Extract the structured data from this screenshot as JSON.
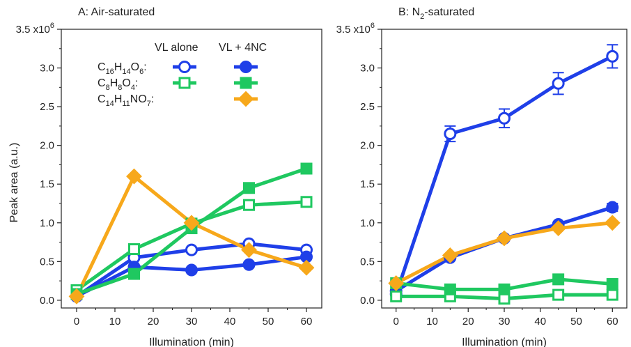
{
  "colors": {
    "blue": "#1f3fe8",
    "green": "#1fc860",
    "orange": "#f7a81b",
    "axis": "#222222"
  },
  "shared": {
    "ylabel": "Peak area (a.u.)",
    "xlabel": "Illumination (min)",
    "y_multiplier_label": "3.5 x10",
    "y_multiplier_exp": "6"
  },
  "legend": {
    "col1": "VL alone",
    "col2": "VL + 4NC",
    "rows": [
      {
        "base": "C",
        "parts": [
          [
            "C",
            ""
          ],
          [
            "16",
            "sub"
          ],
          [
            "H",
            ""
          ],
          [
            "14",
            "sub"
          ],
          [
            "O",
            ""
          ],
          [
            "6",
            "sub"
          ],
          [
            ":",
            ""
          ]
        ],
        "color": "blue",
        "alone_marker": "circle",
        "with_marker": "circle"
      },
      {
        "base": "C",
        "parts": [
          [
            "C",
            ""
          ],
          [
            "8",
            "sub"
          ],
          [
            "H",
            ""
          ],
          [
            "8",
            "sub"
          ],
          [
            "O",
            ""
          ],
          [
            "4",
            "sub"
          ],
          [
            ":",
            ""
          ]
        ],
        "color": "green",
        "alone_marker": "square",
        "with_marker": "square"
      },
      {
        "base": "C",
        "parts": [
          [
            "C",
            ""
          ],
          [
            "14",
            "sub"
          ],
          [
            "H",
            ""
          ],
          [
            "11",
            "sub"
          ],
          [
            "NO",
            ""
          ],
          [
            "7",
            "sub"
          ],
          [
            ":",
            ""
          ]
        ],
        "color": "orange",
        "alone_marker": null,
        "with_marker": "diamond"
      }
    ]
  },
  "chart_data": [
    {
      "type": "line",
      "title": "A: Air-saturated",
      "xlabel": "Illumination (min)",
      "ylabel": "Peak area (a.u.)",
      "xlim": [
        -4,
        64
      ],
      "ylim": [
        -0.1,
        3.5
      ],
      "xticks": [
        0,
        10,
        20,
        30,
        40,
        50,
        60
      ],
      "yticks": [
        0.0,
        0.5,
        1.0,
        1.5,
        2.0,
        2.5,
        3.0
      ],
      "ytick_labels": [
        "0.0",
        "0.5",
        "1.0",
        "1.5",
        "2.0",
        "2.5",
        "3.0"
      ],
      "top_label": "3.5 x10",
      "top_label_exp": "6",
      "series": [
        {
          "formula": "C16H14O6",
          "condition": "VL alone",
          "color": "blue",
          "marker": "circle",
          "filled": false,
          "x": [
            0,
            15,
            30,
            45,
            60
          ],
          "y": [
            0.05,
            0.55,
            0.65,
            0.73,
            0.65
          ]
        },
        {
          "formula": "C16H14O6",
          "condition": "VL + 4NC",
          "color": "blue",
          "marker": "circle",
          "filled": true,
          "x": [
            0,
            15,
            30,
            45,
            60
          ],
          "y": [
            0.05,
            0.43,
            0.39,
            0.46,
            0.56
          ]
        },
        {
          "formula": "C8H8O4",
          "condition": "VL alone",
          "color": "green",
          "marker": "square",
          "filled": false,
          "x": [
            0,
            15,
            30,
            45,
            60
          ],
          "y": [
            0.13,
            0.66,
            0.99,
            1.23,
            1.27
          ]
        },
        {
          "formula": "C8H8O4",
          "condition": "VL + 4NC",
          "color": "green",
          "marker": "square",
          "filled": true,
          "x": [
            0,
            15,
            30,
            45,
            60
          ],
          "y": [
            0.08,
            0.34,
            0.93,
            1.45,
            1.7
          ]
        },
        {
          "formula": "C14H11NO7",
          "condition": "VL + 4NC",
          "color": "orange",
          "marker": "diamond",
          "filled": true,
          "x": [
            0,
            15,
            30,
            45,
            60
          ],
          "y": [
            0.05,
            1.6,
            1.0,
            0.65,
            0.42
          ]
        }
      ]
    },
    {
      "type": "line",
      "title": "B: N2-saturated",
      "xlabel": "Illumination (min)",
      "xlim": [
        -4,
        64
      ],
      "ylim": [
        -0.1,
        3.5
      ],
      "xticks": [
        0,
        10,
        20,
        30,
        40,
        50,
        60
      ],
      "yticks": [
        0.0,
        0.5,
        1.0,
        1.5,
        2.0,
        2.5,
        3.0
      ],
      "ytick_labels": [
        "0.0",
        "0.5",
        "1.0",
        "1.5",
        "2.0",
        "2.5",
        "3.0"
      ],
      "top_label": "3.5 x10",
      "top_label_exp": "6",
      "series": [
        {
          "formula": "C16H14O6",
          "condition": "VL alone",
          "color": "blue",
          "marker": "circle",
          "filled": false,
          "x": [
            0,
            15,
            30,
            45,
            60
          ],
          "y": [
            0.08,
            2.15,
            2.35,
            2.8,
            3.15
          ],
          "err": [
            0.02,
            0.1,
            0.12,
            0.14,
            0.15
          ]
        },
        {
          "formula": "C16H14O6",
          "condition": "VL + 4NC",
          "color": "blue",
          "marker": "circle",
          "filled": true,
          "x": [
            0,
            15,
            30,
            45,
            60
          ],
          "y": [
            0.12,
            0.55,
            0.8,
            0.98,
            1.2
          ],
          "err": [
            0.02,
            0.03,
            0.03,
            0.03,
            0.05
          ]
        },
        {
          "formula": "C8H8O4",
          "condition": "VL alone",
          "color": "green",
          "marker": "square",
          "filled": false,
          "x": [
            0,
            15,
            30,
            45,
            60
          ],
          "y": [
            0.05,
            0.05,
            0.02,
            0.07,
            0.07
          ]
        },
        {
          "formula": "C8H8O4",
          "condition": "VL + 4NC",
          "color": "green",
          "marker": "square",
          "filled": true,
          "x": [
            0,
            15,
            30,
            45,
            60
          ],
          "y": [
            0.22,
            0.14,
            0.14,
            0.27,
            0.21
          ]
        },
        {
          "formula": "C14H11NO7",
          "condition": "VL + 4NC",
          "color": "orange",
          "marker": "diamond",
          "filled": true,
          "x": [
            0,
            15,
            30,
            45,
            60
          ],
          "y": [
            0.22,
            0.58,
            0.8,
            0.93,
            1.0
          ]
        }
      ]
    }
  ]
}
